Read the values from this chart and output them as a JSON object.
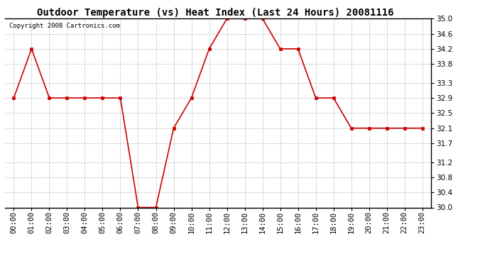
{
  "title": "Outdoor Temperature (vs) Heat Index (Last 24 Hours) 20081116",
  "copyright": "Copyright 2008 Cartronics.com",
  "x_labels": [
    "00:00",
    "01:00",
    "02:00",
    "03:00",
    "04:00",
    "05:00",
    "06:00",
    "07:00",
    "08:00",
    "09:00",
    "10:00",
    "11:00",
    "12:00",
    "13:00",
    "14:00",
    "15:00",
    "16:00",
    "17:00",
    "18:00",
    "19:00",
    "20:00",
    "21:00",
    "22:00",
    "23:00"
  ],
  "y_values": [
    32.9,
    34.2,
    32.9,
    32.9,
    32.9,
    32.9,
    32.9,
    30.0,
    30.0,
    32.1,
    32.9,
    34.2,
    35.0,
    35.0,
    35.0,
    34.2,
    34.2,
    32.9,
    32.9,
    32.1,
    32.1,
    32.1,
    32.1,
    32.1
  ],
  "line_color": "#cc0000",
  "marker_color": "#cc0000",
  "bg_color": "#ffffff",
  "grid_color": "#bbbbbb",
  "ylim_min": 30.0,
  "ylim_max": 35.0,
  "yticks": [
    30.0,
    30.4,
    30.8,
    31.2,
    31.7,
    32.1,
    32.5,
    32.9,
    33.3,
    33.8,
    34.2,
    34.6,
    35.0
  ],
  "title_fontsize": 10,
  "copyright_fontsize": 6.5,
  "tick_fontsize": 7.5
}
